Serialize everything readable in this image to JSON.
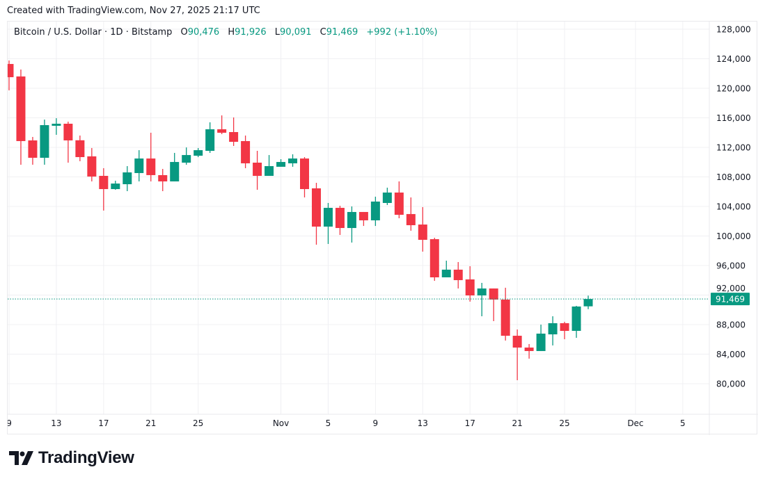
{
  "header": {
    "created": "Created with TradingView.com, Nov 27, 2025 21:17 UTC"
  },
  "legend": {
    "symbol": "Bitcoin / U.S. Dollar · 1D · Bitstamp",
    "o_label": "O",
    "o": "90,476",
    "h_label": "H",
    "h": "91,926",
    "l_label": "L",
    "l": "90,091",
    "c_label": "C",
    "c": "91,469",
    "change": "+992 (+1.10%)"
  },
  "logo": {
    "text": "TradingView"
  },
  "colors": {
    "up": "#089981",
    "down": "#f23645",
    "grid": "#f0f0f3",
    "text": "#131722"
  },
  "chart_data": {
    "type": "candlestick",
    "title": "Bitcoin / U.S. Dollar · 1D · Bitstamp",
    "ylim": [
      76000,
      130000
    ],
    "y_ticks": [
      "128,000",
      "124,000",
      "120,000",
      "116,000",
      "112,000",
      "108,000",
      "104,000",
      "100,000",
      "96,000",
      "92,000",
      "88,000",
      "84,000",
      "80,000"
    ],
    "y_tick_values": [
      128000,
      124000,
      120000,
      116000,
      112000,
      108000,
      104000,
      100000,
      96000,
      92000,
      88000,
      84000,
      80000
    ],
    "x_ticks": [
      {
        "label": "9",
        "day": 0
      },
      {
        "label": "13",
        "day": 4
      },
      {
        "label": "17",
        "day": 8
      },
      {
        "label": "21",
        "day": 12
      },
      {
        "label": "25",
        "day": 16
      },
      {
        "label": "Nov",
        "day": 23
      },
      {
        "label": "5",
        "day": 27
      },
      {
        "label": "9",
        "day": 31
      },
      {
        "label": "13",
        "day": 35
      },
      {
        "label": "17",
        "day": 39
      },
      {
        "label": "21",
        "day": 43
      },
      {
        "label": "25",
        "day": 47
      },
      {
        "label": "Dec",
        "day": 53
      },
      {
        "label": "5",
        "day": 57
      }
    ],
    "grid": true,
    "last_price": 91469,
    "last_price_label": "91,469",
    "columns": [
      "date",
      "open",
      "high",
      "low",
      "close"
    ],
    "candles": [
      [
        "2025-10-09",
        123290,
        123760,
        119720,
        121500
      ],
      [
        "2025-10-10",
        121600,
        122540,
        109650,
        112850
      ],
      [
        "2025-10-11",
        112940,
        113410,
        109650,
        110590
      ],
      [
        "2025-10-12",
        110590,
        115760,
        109650,
        115010
      ],
      [
        "2025-10-13",
        114920,
        115950,
        113700,
        115200
      ],
      [
        "2025-10-14",
        115200,
        115480,
        109930,
        112940
      ],
      [
        "2025-10-15",
        112960,
        113600,
        110120,
        110680
      ],
      [
        "2025-10-16",
        110780,
        111910,
        107390,
        108050
      ],
      [
        "2025-10-17",
        108140,
        109180,
        103440,
        106350
      ],
      [
        "2025-10-18",
        106350,
        107480,
        106260,
        107100
      ],
      [
        "2025-10-19",
        107010,
        109460,
        106070,
        108610
      ],
      [
        "2025-10-20",
        108520,
        111620,
        107390,
        110490
      ],
      [
        "2025-10-21",
        110490,
        113980,
        107390,
        108240
      ],
      [
        "2025-10-22",
        108240,
        109080,
        106070,
        107390
      ],
      [
        "2025-10-23",
        107390,
        111250,
        107390,
        110020
      ],
      [
        "2025-10-24",
        109930,
        111990,
        109650,
        110960
      ],
      [
        "2025-10-25",
        110870,
        111910,
        110680,
        111620
      ],
      [
        "2025-10-26",
        111530,
        115390,
        111250,
        114450
      ],
      [
        "2025-10-27",
        114450,
        116330,
        113790,
        113980
      ],
      [
        "2025-10-28",
        114070,
        116050,
        112190,
        112750
      ],
      [
        "2025-10-29",
        112850,
        113600,
        109180,
        109840
      ],
      [
        "2025-10-30",
        109930,
        111530,
        106260,
        108140
      ],
      [
        "2025-10-31",
        108140,
        110960,
        108140,
        109460
      ],
      [
        "2025-11-01",
        109370,
        110400,
        109370,
        110020
      ],
      [
        "2025-11-02",
        109840,
        111060,
        109370,
        110490
      ],
      [
        "2025-11-03",
        110490,
        110680,
        105220,
        106350
      ],
      [
        "2025-11-04",
        106450,
        107200,
        98820,
        101270
      ],
      [
        "2025-11-05",
        101270,
        104470,
        98920,
        103810
      ],
      [
        "2025-11-06",
        103810,
        104090,
        100140,
        101080
      ],
      [
        "2025-11-07",
        101080,
        104000,
        99110,
        103250
      ],
      [
        "2025-11-08",
        103250,
        103250,
        101360,
        102120
      ],
      [
        "2025-11-09",
        102120,
        105320,
        101360,
        104660
      ],
      [
        "2025-11-10",
        104470,
        106540,
        104190,
        105880
      ],
      [
        "2025-11-11",
        105880,
        107390,
        102400,
        102870
      ],
      [
        "2025-11-12",
        102970,
        105220,
        100710,
        101460
      ],
      [
        "2025-11-13",
        101550,
        103910,
        97880,
        99480
      ],
      [
        "2025-11-14",
        99570,
        99760,
        93930,
        94400
      ],
      [
        "2025-11-15",
        94400,
        96660,
        94400,
        95440
      ],
      [
        "2025-11-16",
        95440,
        96470,
        92890,
        94020
      ],
      [
        "2025-11-17",
        94120,
        95910,
        91110,
        91950
      ],
      [
        "2025-11-18",
        91950,
        93650,
        89130,
        92890
      ],
      [
        "2025-11-19",
        92890,
        92890,
        88470,
        91390
      ],
      [
        "2025-11-20",
        91390,
        92990,
        85840,
        86490
      ],
      [
        "2025-11-21",
        86490,
        87340,
        80470,
        84890
      ],
      [
        "2025-11-22",
        84890,
        85370,
        83390,
        84420
      ],
      [
        "2025-11-23",
        84420,
        88000,
        84420,
        86780
      ],
      [
        "2025-11-24",
        86680,
        89130,
        85180,
        88190
      ],
      [
        "2025-11-25",
        88190,
        88380,
        86020,
        87150
      ],
      [
        "2025-11-26",
        87150,
        90540,
        86210,
        90450
      ],
      [
        "2025-11-27",
        90476,
        91926,
        90091,
        91469
      ]
    ]
  }
}
